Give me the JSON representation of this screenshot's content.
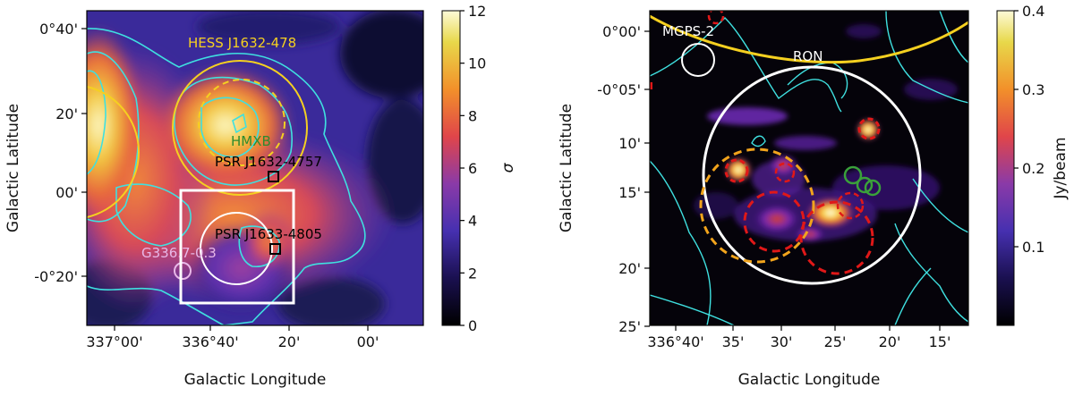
{
  "chart_data": [
    {
      "type": "heatmap",
      "panel": "left",
      "xlabel": "Galactic Longitude",
      "ylabel": "Galactic Latitude",
      "x_ticks": [
        "337°00'",
        "336°40'",
        "20'",
        "00'"
      ],
      "y_ticks": [
        "0°40'",
        "20'",
        "00'",
        "-0°20'"
      ],
      "colorbar": {
        "label": "σ",
        "range": [
          0,
          12
        ],
        "ticks": [
          "0",
          "2",
          "4",
          "6",
          "8",
          "10",
          "12"
        ],
        "colormap": "CMRmap"
      },
      "annotations": [
        {
          "text": "HESS J1632-478",
          "color": "#f5d020"
        },
        {
          "text": "HMXB",
          "color": "#2e8b2e"
        },
        {
          "text": "PSR J1632-4757",
          "color": "#000000"
        },
        {
          "text": "PSR J1633-4805",
          "color": "#000000"
        },
        {
          "text": "G336.7-0.3",
          "color": "#e8b8e8"
        }
      ],
      "contours_color": "#3fe0e0",
      "zoom_box_color": "#ffffff"
    },
    {
      "type": "heatmap",
      "panel": "right",
      "xlabel": "Galactic Longitude",
      "ylabel": "Galactic Latitude",
      "x_ticks": [
        "336°40'",
        "35'",
        "30'",
        "25'",
        "20'",
        "15'"
      ],
      "y_ticks": [
        "0°00'",
        "-0°05'",
        "10'",
        "15'",
        "20'",
        "25'"
      ],
      "colorbar": {
        "label": "Jy/beam",
        "range": [
          0,
          0.4
        ],
        "ticks": [
          "0.1",
          "0.2",
          "0.3",
          "0.4"
        ],
        "colormap": "CMRmap"
      },
      "annotations": [
        {
          "text": "MGPS-2",
          "color": "#ffffff"
        },
        {
          "text": "RON",
          "color": "#ffffff"
        }
      ],
      "contours_color": "#3fe0e0"
    }
  ]
}
